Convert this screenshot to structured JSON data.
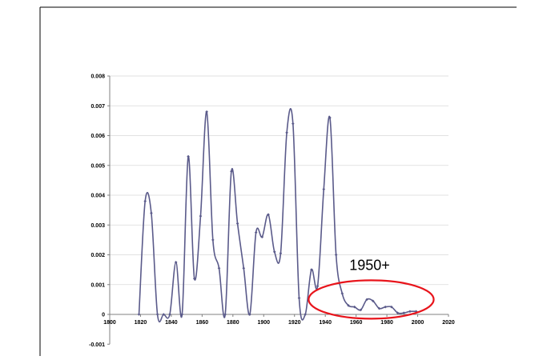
{
  "chart_data": {
    "type": "line",
    "title": "",
    "xlabel": "",
    "ylabel": "",
    "xlim": [
      1800,
      2020
    ],
    "ylim": [
      -0.001,
      0.008
    ],
    "x_ticks": [
      1800,
      1820,
      1840,
      1860,
      1880,
      1900,
      1920,
      1940,
      1960,
      1980,
      2000,
      2020
    ],
    "y_ticks": [
      -0.001,
      0,
      0.001,
      0.002,
      0.003,
      0.004,
      0.005,
      0.006,
      0.007,
      0.008
    ],
    "x_tick_labels": [
      "1800",
      "1820",
      "1840",
      "1860",
      "1880",
      "1900",
      "1920",
      "1940",
      "1960",
      "1980",
      "2000",
      "2020"
    ],
    "y_tick_labels": [
      "-0.001",
      "0",
      "0.001",
      "0.002",
      "0.003",
      "0.004",
      "0.005",
      "0.006",
      "0.007",
      "0.008"
    ],
    "grid": "horizontal",
    "line_color": "#5a5a8a",
    "series": [
      {
        "x": [
          1819,
          1823,
          1827,
          1831,
          1835,
          1839,
          1843,
          1847,
          1851,
          1855,
          1859,
          1863,
          1867,
          1871,
          1875,
          1879,
          1883,
          1887,
          1891,
          1895,
          1899,
          1903,
          1907,
          1911,
          1915,
          1919,
          1923,
          1927,
          1931,
          1935,
          1939,
          1943,
          1947,
          1951,
          1955,
          1959,
          1963,
          1967,
          1971,
          1975,
          1979,
          1983,
          1987,
          1991,
          1995,
          1999
        ],
        "y": [
          0.0,
          0.0038,
          0.0034,
          0.0,
          0.0,
          0.0,
          0.00175,
          0.0,
          0.0053,
          0.0012,
          0.0033,
          0.0068,
          0.0025,
          0.00155,
          0.0,
          0.0048,
          0.00305,
          0.00155,
          0.0,
          0.00275,
          0.0026,
          0.00335,
          0.0021,
          0.00205,
          0.0061,
          0.0064,
          0.00055,
          0.0,
          0.0015,
          0.00095,
          0.0042,
          0.0066,
          0.002,
          0.0007,
          0.0003,
          0.00025,
          0.00015,
          0.0005,
          0.00045,
          0.0002,
          0.00025,
          0.00025,
          5e-05,
          5e-05,
          0.0001,
          0.0001
        ]
      }
    ],
    "annotations": [
      {
        "text": "1950+",
        "color": "#e8141b",
        "target_x_range": [
          1950,
          2000
        ]
      }
    ]
  }
}
